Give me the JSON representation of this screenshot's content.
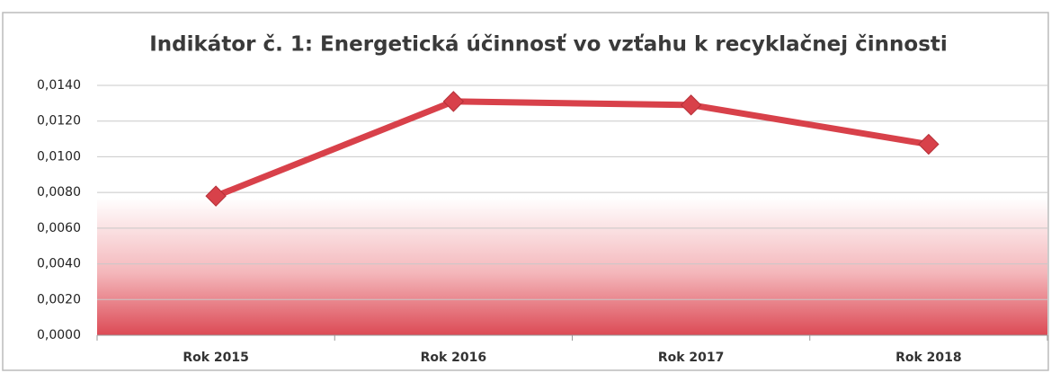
{
  "chart_data": {
    "type": "line",
    "title": "Indikátor č. 1: Energetická účinnosť vo vzťahu k recyklačnej činnosti",
    "categories": [
      "Rok 2015",
      "Rok 2016",
      "Rok 2017",
      "Rok 2018"
    ],
    "series": [
      {
        "name": "Indikátor č. 1",
        "color": "#d8414a",
        "values": [
          0.0078,
          0.0131,
          0.0129,
          0.0107
        ]
      }
    ],
    "ylim": [
      0,
      0.014
    ],
    "yticks": [
      {
        "value": 0,
        "label": "0,0000"
      },
      {
        "value": 0.002,
        "label": "0,0020"
      },
      {
        "value": 0.004,
        "label": "0,0040"
      },
      {
        "value": 0.006,
        "label": "0,0060"
      },
      {
        "value": 0.008,
        "label": "0,0080"
      },
      {
        "value": 0.01,
        "label": "0,0100"
      },
      {
        "value": 0.012,
        "label": "0,0120"
      },
      {
        "value": 0.014,
        "label": "0,0140"
      }
    ],
    "grid": true
  }
}
